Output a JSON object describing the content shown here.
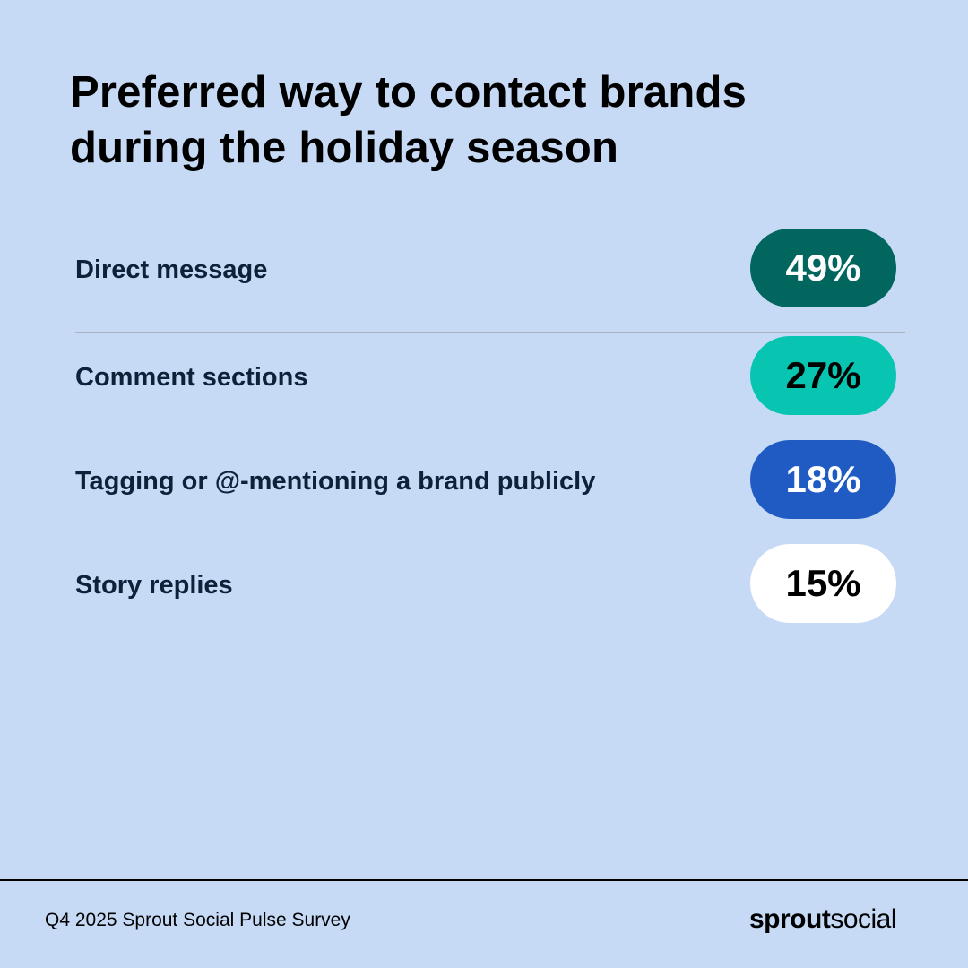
{
  "title": "Preferred way to contact brands during the holiday season",
  "rows": [
    {
      "label": "Direct message",
      "value": "49%",
      "bg": "#00665e",
      "fg": "#ffffff"
    },
    {
      "label": "Comment sections",
      "value": "27%",
      "bg": "#07c5b1",
      "fg": "#000000"
    },
    {
      "label": "Tagging or @-mentioning a brand publicly",
      "value": "18%",
      "bg": "#205bc3",
      "fg": "#ffffff"
    },
    {
      "label": "Story replies",
      "value": "15%",
      "bg": "#ffffff",
      "fg": "#000000"
    }
  ],
  "footer": {
    "source": "Q4 2025 Sprout Social Pulse Survey",
    "logo_bold": "sprout",
    "logo_light": "social"
  },
  "chart_data": {
    "type": "table",
    "title": "Preferred way to contact brands during the holiday season",
    "categories": [
      "Direct message",
      "Comment sections",
      "Tagging or @-mentioning a brand publicly",
      "Story replies"
    ],
    "values": [
      49,
      27,
      18,
      15
    ],
    "unit": "%",
    "source": "Q4 2025 Sprout Social Pulse Survey"
  }
}
